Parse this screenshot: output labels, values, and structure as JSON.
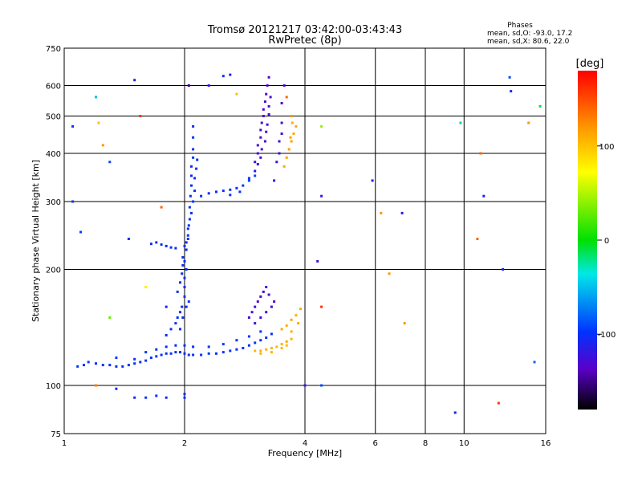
{
  "chart_data": {
    "type": "scatter",
    "title": "Tromsø 20121217 03:42:00-03:43:43",
    "subtitle": "RwPretec (8p)",
    "xlabel": "Frequency [MHz]",
    "ylabel": "Stationary phase Virtual Height [km]",
    "x_scale": "log",
    "y_scale": "log",
    "xlim": [
      1,
      16
    ],
    "ylim": [
      75,
      750
    ],
    "x_ticks": [
      1,
      2,
      4,
      8,
      16
    ],
    "x_minor_ticks": [
      6,
      10
    ],
    "y_ticks": [
      75,
      100,
      200,
      300,
      400,
      500,
      600,
      750
    ],
    "grid": true,
    "stats": {
      "heading": "Phases",
      "o_line": "mean, sd,O: -93.0, 17.2",
      "x_line": "mean, sd,X:  80.6, 22.0"
    },
    "colorbar": {
      "label": "[deg]",
      "range": [
        -180,
        180
      ],
      "ticks": [
        100,
        0,
        -100
      ]
    },
    "series": [
      {
        "points": [
          [
            1.08,
            112,
            -95
          ],
          [
            1.12,
            113,
            -100
          ],
          [
            1.15,
            115,
            -95
          ],
          [
            1.2,
            114,
            -100
          ],
          [
            1.25,
            113,
            -98
          ],
          [
            1.3,
            113,
            -100
          ],
          [
            1.35,
            112,
            -102
          ],
          [
            1.4,
            112,
            -100
          ],
          [
            1.45,
            113,
            -99
          ],
          [
            1.5,
            114,
            -100
          ],
          [
            1.55,
            115,
            -101
          ],
          [
            1.6,
            116,
            -100
          ],
          [
            1.65,
            118,
            -99
          ],
          [
            1.7,
            119,
            -100
          ],
          [
            1.75,
            120,
            -102
          ],
          [
            1.8,
            121,
            -100
          ],
          [
            1.85,
            121,
            -98
          ],
          [
            1.9,
            122,
            -100
          ],
          [
            1.95,
            122,
            -101
          ],
          [
            2.0,
            121,
            -100
          ],
          [
            2.05,
            120,
            -99
          ],
          [
            2.1,
            120,
            -100
          ],
          [
            2.2,
            120,
            -98
          ],
          [
            2.3,
            121,
            -99
          ],
          [
            2.4,
            121,
            -100
          ],
          [
            2.5,
            122,
            -97
          ],
          [
            2.6,
            123,
            -96
          ],
          [
            2.7,
            124,
            -98
          ],
          [
            2.8,
            125,
            -99
          ],
          [
            2.9,
            127,
            -98
          ],
          [
            3.0,
            129,
            -97
          ],
          [
            3.1,
            131,
            -99
          ],
          [
            3.2,
            133,
            -100
          ],
          [
            3.3,
            136,
            -98
          ],
          [
            1.35,
            118,
            -96
          ],
          [
            1.5,
            117,
            -98
          ],
          [
            1.6,
            122,
            -97
          ],
          [
            1.7,
            124,
            -99
          ],
          [
            1.8,
            126,
            -100
          ],
          [
            1.9,
            127,
            -99
          ],
          [
            2.0,
            127,
            -98
          ],
          [
            2.1,
            126,
            -100
          ],
          [
            2.3,
            126,
            -97
          ],
          [
            2.5,
            128,
            -96
          ],
          [
            2.7,
            131,
            -98
          ],
          [
            2.9,
            134,
            -97
          ],
          [
            3.1,
            138,
            -99
          ],
          [
            1.8,
            135,
            -100
          ],
          [
            1.85,
            140,
            -100
          ],
          [
            1.9,
            145,
            -102
          ],
          [
            1.92,
            150,
            -101
          ],
          [
            1.95,
            155,
            -100
          ],
          [
            1.97,
            160,
            -102
          ],
          [
            2.0,
            170,
            -100
          ],
          [
            2.0,
            180,
            -101
          ],
          [
            2.0,
            190,
            -100
          ],
          [
            2.02,
            200,
            -102
          ],
          [
            2.0,
            210,
            -100
          ],
          [
            2.02,
            225,
            -101
          ],
          [
            2.04,
            240,
            -100
          ],
          [
            2.04,
            255,
            -102
          ],
          [
            2.06,
            270,
            -100
          ],
          [
            2.06,
            290,
            -101
          ],
          [
            2.07,
            310,
            -100
          ],
          [
            2.08,
            330,
            -102
          ],
          [
            2.08,
            350,
            -100
          ],
          [
            2.08,
            370,
            -101
          ],
          [
            2.1,
            390,
            -100
          ],
          [
            2.1,
            410,
            -102
          ],
          [
            2.1,
            440,
            -100
          ],
          [
            1.92,
            175,
            -102
          ],
          [
            1.95,
            185,
            -100
          ],
          [
            1.97,
            195,
            -101
          ],
          [
            1.98,
            205,
            -100
          ],
          [
            1.98,
            215,
            -102
          ],
          [
            2.0,
            230,
            -100
          ],
          [
            2.05,
            260,
            -101
          ],
          [
            2.08,
            280,
            -100
          ],
          [
            2.1,
            300,
            -102
          ],
          [
            2.12,
            320,
            -100
          ],
          [
            2.12,
            345,
            -101
          ],
          [
            2.14,
            365,
            -100
          ],
          [
            2.15,
            385,
            -102
          ],
          [
            2.02,
            235,
            -98
          ],
          [
            2.04,
            245,
            -99
          ],
          [
            1.95,
            140,
            -100
          ],
          [
            1.98,
            150,
            -101
          ],
          [
            2.02,
            160,
            -99
          ],
          [
            2.05,
            165,
            -100
          ],
          [
            1.7,
            235,
            -100
          ],
          [
            1.75,
            232,
            -101
          ],
          [
            1.8,
            230,
            -100
          ],
          [
            1.85,
            228,
            -102
          ],
          [
            1.9,
            227,
            -100
          ],
          [
            1.65,
            233,
            -101
          ],
          [
            2.2,
            310,
            -100
          ],
          [
            2.3,
            315,
            -101
          ],
          [
            2.4,
            318,
            -102
          ],
          [
            2.5,
            320,
            -100
          ],
          [
            2.6,
            322,
            -101
          ],
          [
            2.7,
            325,
            -99
          ],
          [
            2.8,
            330,
            -97
          ],
          [
            2.9,
            340,
            -95
          ],
          [
            3.0,
            350,
            -92
          ],
          [
            2.6,
            312,
            -99
          ],
          [
            2.75,
            318,
            -98
          ],
          [
            2.9,
            345,
            -96
          ],
          [
            3.0,
            380,
            -120
          ],
          [
            3.05,
            400,
            -125
          ],
          [
            3.05,
            420,
            -128
          ],
          [
            3.1,
            440,
            -130
          ],
          [
            3.1,
            460,
            -132
          ],
          [
            3.12,
            480,
            -130
          ],
          [
            3.15,
            500,
            -133
          ],
          [
            3.15,
            520,
            -130
          ],
          [
            3.18,
            545,
            -132
          ],
          [
            3.2,
            570,
            -130
          ],
          [
            3.22,
            600,
            -133
          ],
          [
            3.25,
            630,
            -130
          ],
          [
            3.1,
            390,
            -125
          ],
          [
            3.12,
            410,
            -127
          ],
          [
            3.18,
            430,
            -129
          ],
          [
            3.2,
            455,
            -131
          ],
          [
            3.22,
            475,
            -130
          ],
          [
            3.25,
            505,
            -132
          ],
          [
            3.25,
            530,
            -130
          ],
          [
            3.28,
            560,
            -131
          ],
          [
            3.0,
            360,
            -122
          ],
          [
            3.05,
            375,
            -124
          ],
          [
            3.35,
            340,
            -120
          ],
          [
            3.4,
            380,
            -122
          ],
          [
            3.45,
            430,
            -125
          ],
          [
            3.5,
            480,
            -127
          ],
          [
            3.5,
            540,
            -130
          ],
          [
            3.55,
            600,
            -132
          ],
          [
            3.45,
            400,
            -123
          ],
          [
            3.5,
            450,
            -126
          ],
          [
            2.9,
            150,
            -128
          ],
          [
            2.95,
            155,
            -130
          ],
          [
            3.0,
            160,
            -132
          ],
          [
            3.05,
            165,
            -130
          ],
          [
            3.1,
            170,
            -131
          ],
          [
            3.15,
            175,
            -130
          ],
          [
            3.2,
            180,
            -132
          ],
          [
            3.25,
            172,
            -130
          ],
          [
            3.3,
            160,
            -129
          ],
          [
            3.1,
            150,
            -128
          ],
          [
            3.2,
            155,
            -130
          ],
          [
            3.35,
            165,
            -131
          ],
          [
            3.0,
            145,
            -127
          ],
          [
            1.35,
            98,
            -105
          ],
          [
            1.5,
            93,
            -100
          ],
          [
            1.6,
            93,
            -98
          ],
          [
            1.7,
            94,
            -100
          ],
          [
            1.8,
            93,
            -102
          ],
          [
            2.0,
            93,
            -100
          ]
        ]
      },
      {
        "points": [
          [
            3.0,
            123,
            105
          ],
          [
            3.1,
            123,
            108
          ],
          [
            3.2,
            124,
            110
          ],
          [
            3.3,
            125,
            107
          ],
          [
            3.4,
            126,
            105
          ],
          [
            3.5,
            128,
            108
          ],
          [
            3.6,
            130,
            110
          ],
          [
            3.7,
            132,
            107
          ],
          [
            3.1,
            121,
            105
          ],
          [
            3.3,
            122,
            108
          ],
          [
            3.5,
            125,
            106
          ],
          [
            3.6,
            127,
            104
          ],
          [
            3.5,
            140,
            112
          ],
          [
            3.6,
            143,
            110
          ],
          [
            3.7,
            148,
            112
          ],
          [
            3.8,
            152,
            110
          ],
          [
            3.9,
            158,
            111
          ],
          [
            3.7,
            138,
            108
          ],
          [
            3.85,
            145,
            111
          ],
          [
            3.55,
            370,
            112
          ],
          [
            3.6,
            390,
            115
          ],
          [
            3.65,
            410,
            118
          ],
          [
            3.7,
            430,
            115
          ],
          [
            3.75,
            450,
            112
          ],
          [
            3.8,
            470,
            113
          ],
          [
            3.72,
            480,
            110
          ],
          [
            3.68,
            440,
            116
          ]
        ]
      },
      {
        "points": [
          [
            1.05,
            470,
            -100
          ],
          [
            1.05,
            300,
            -98
          ],
          [
            1.1,
            250,
            -95
          ],
          [
            1.2,
            560,
            -50
          ],
          [
            1.22,
            480,
            100
          ],
          [
            1.25,
            420,
            120
          ],
          [
            1.3,
            150,
            30
          ],
          [
            1.3,
            380,
            -90
          ],
          [
            1.45,
            240,
            -100
          ],
          [
            1.5,
            620,
            -110
          ],
          [
            1.55,
            500,
            160
          ],
          [
            1.6,
            180,
            80
          ],
          [
            1.75,
            290,
            140
          ],
          [
            1.8,
            160,
            -110
          ],
          [
            2.05,
            600,
            -150
          ],
          [
            2.1,
            470,
            -100
          ],
          [
            2.3,
            600,
            -120
          ],
          [
            2.5,
            635,
            -100
          ],
          [
            2.6,
            640,
            -110
          ],
          [
            2.7,
            570,
            100
          ],
          [
            3.6,
            560,
            140
          ],
          [
            3.7,
            500,
            120
          ],
          [
            4.4,
            470,
            40
          ],
          [
            4.4,
            310,
            -115
          ],
          [
            4.3,
            210,
            -120
          ],
          [
            4.4,
            160,
            160
          ],
          [
            4.4,
            100,
            -90
          ],
          [
            5.9,
            340,
            -110
          ],
          [
            6.2,
            280,
            120
          ],
          [
            7.0,
            280,
            -115
          ],
          [
            7.1,
            145,
            120
          ],
          [
            6.5,
            195,
            120
          ],
          [
            9.8,
            480,
            -20
          ],
          [
            9.5,
            85,
            -110
          ],
          [
            11.0,
            400,
            140
          ],
          [
            11.2,
            310,
            -110
          ],
          [
            10.8,
            240,
            140
          ],
          [
            12.5,
            200,
            -110
          ],
          [
            13.0,
            630,
            -90
          ],
          [
            13.1,
            580,
            -100
          ],
          [
            14.5,
            480,
            120
          ],
          [
            15.5,
            530,
            -10
          ],
          [
            15.0,
            115,
            -80
          ],
          [
            12.2,
            90,
            160
          ],
          [
            4.0,
            100,
            -120
          ],
          [
            2.0,
            95,
            -110
          ],
          [
            1.2,
            100,
            130
          ]
        ]
      }
    ]
  }
}
